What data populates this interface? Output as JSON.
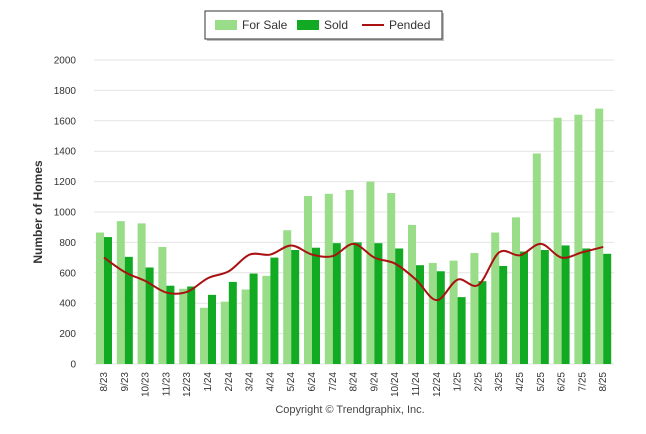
{
  "chart_data": {
    "type": "bar",
    "ylabel": "Number of Homes",
    "ylim": [
      0,
      2000
    ],
    "yticks": [
      0,
      200,
      400,
      600,
      800,
      1000,
      1200,
      1400,
      1600,
      1800,
      2000
    ],
    "grid": true,
    "legend_position": "top-center",
    "categories": [
      "8/23",
      "9/23",
      "10/23",
      "11/23",
      "12/23",
      "1/24",
      "2/24",
      "3/24",
      "4/24",
      "5/24",
      "6/24",
      "7/24",
      "8/24",
      "9/24",
      "10/24",
      "11/24",
      "12/24",
      "1/25",
      "2/25",
      "3/25",
      "4/25",
      "5/25",
      "6/25",
      "7/25",
      "8/25"
    ],
    "series": [
      {
        "name": "For Sale",
        "kind": "bar",
        "color": "#99dd88",
        "values": [
          865,
          940,
          925,
          770,
          495,
          370,
          410,
          490,
          580,
          880,
          1105,
          1120,
          1145,
          1200,
          1125,
          915,
          665,
          680,
          730,
          865,
          965,
          1385,
          1620,
          1640,
          1680
        ]
      },
      {
        "name": "Sold",
        "kind": "bar",
        "color": "#11aa22",
        "values": [
          835,
          705,
          635,
          515,
          510,
          455,
          540,
          595,
          700,
          750,
          765,
          795,
          800,
          795,
          760,
          650,
          610,
          440,
          545,
          645,
          740,
          750,
          780,
          760,
          725
        ]
      },
      {
        "name": "Pended",
        "kind": "line",
        "color": "#aa1111",
        "values": [
          700,
          605,
          545,
          470,
          475,
          565,
          610,
          720,
          720,
          780,
          720,
          710,
          790,
          700,
          660,
          555,
          420,
          555,
          520,
          735,
          715,
          790,
          700,
          735,
          770
        ]
      }
    ]
  },
  "copyright": "Copyright © Trendgraphix, Inc."
}
